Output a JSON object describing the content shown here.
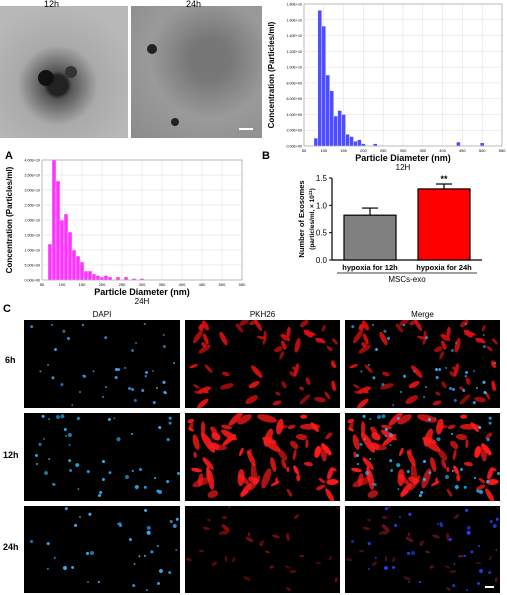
{
  "tem": {
    "left_label": "12h",
    "right_label": "24h"
  },
  "panel_letters": {
    "a": "A",
    "b": "B",
    "c": "C"
  },
  "chart_data": [
    {
      "type": "bar",
      "name": "histogram-12h",
      "title": "12H",
      "xlabel": "Particle Diameter (nm)",
      "ylabel": "Concentration (Particles/ml)",
      "color": "#4d4dff",
      "x_ticks": [
        "50",
        "100",
        "150",
        "200",
        "250",
        "300",
        "350",
        "400",
        "450",
        "500",
        "550"
      ],
      "y_ticks": [
        "0.00E+00",
        "2.00E+09",
        "4.00E+09",
        "6.00E+09",
        "8.00E+09",
        "1.00E+10",
        "1.20E+10",
        "1.40E+10",
        "1.60E+10",
        "1.80E+10"
      ],
      "xlim": [
        50,
        550
      ],
      "ylim": [
        0,
        18000000000.0
      ],
      "bin_width": 10,
      "bins": [
        {
          "x": 80,
          "y": 1000000000.0
        },
        {
          "x": 90,
          "y": 17200000000.0
        },
        {
          "x": 100,
          "y": 15200000000.0
        },
        {
          "x": 110,
          "y": 9000000000.0
        },
        {
          "x": 120,
          "y": 7000000000.0
        },
        {
          "x": 130,
          "y": 3800000000.0
        },
        {
          "x": 140,
          "y": 4500000000.0
        },
        {
          "x": 150,
          "y": 4000000000.0
        },
        {
          "x": 160,
          "y": 1500000000.0
        },
        {
          "x": 170,
          "y": 1200000000.0
        },
        {
          "x": 180,
          "y": 600000000.0
        },
        {
          "x": 190,
          "y": 800000000.0
        },
        {
          "x": 200,
          "y": 300000000.0
        },
        {
          "x": 230,
          "y": 300000000.0
        },
        {
          "x": 440,
          "y": 500000000.0
        },
        {
          "x": 500,
          "y": 400000000.0
        }
      ]
    },
    {
      "type": "bar",
      "name": "histogram-24h",
      "title": "24H",
      "xlabel": "Particle Diameter (nm)",
      "ylabel": "Concentration (Particles/ml)",
      "color": "#ff33ff",
      "x_ticks": [
        "50",
        "100",
        "150",
        "200",
        "250",
        "300",
        "350",
        "400",
        "450",
        "500",
        "550"
      ],
      "y_ticks": [
        "0.00E+00",
        "5.00E+09",
        "1.00E+10",
        "1.50E+10",
        "2.00E+10",
        "2.50E+10",
        "3.00E+10",
        "3.50E+10",
        "4.00E+10"
      ],
      "xlim": [
        50,
        550
      ],
      "ylim": [
        0,
        40000000000.0
      ],
      "bin_width": 10,
      "bins": [
        {
          "x": 70,
          "y": 12000000000.0
        },
        {
          "x": 80,
          "y": 40000000000.0
        },
        {
          "x": 90,
          "y": 33000000000.0
        },
        {
          "x": 100,
          "y": 20000000000.0
        },
        {
          "x": 110,
          "y": 22000000000.0
        },
        {
          "x": 120,
          "y": 16000000000.0
        },
        {
          "x": 130,
          "y": 10000000000.0
        },
        {
          "x": 140,
          "y": 8000000000.0
        },
        {
          "x": 150,
          "y": 6000000000.0
        },
        {
          "x": 160,
          "y": 3000000000.0
        },
        {
          "x": 170,
          "y": 3000000000.0
        },
        {
          "x": 180,
          "y": 2000000000.0
        },
        {
          "x": 190,
          "y": 1500000000.0
        },
        {
          "x": 200,
          "y": 1000000000.0
        },
        {
          "x": 210,
          "y": 1500000000.0
        },
        {
          "x": 220,
          "y": 1000000000.0
        },
        {
          "x": 240,
          "y": 1000000000.0
        },
        {
          "x": 260,
          "y": 1000000000.0
        },
        {
          "x": 280,
          "y": 500000000.0
        },
        {
          "x": 300,
          "y": 500000000.0
        }
      ]
    },
    {
      "type": "bar",
      "name": "exosome-count",
      "ylabel_line1": "Number of Exosomes",
      "ylabel_line2": "(particles/ml, × 10",
      "ylabel_sup": "11",
      "ylabel_end": ")",
      "categories": [
        "hypoxia for 12h",
        "hypoxia for 24h"
      ],
      "values": [
        0.82,
        1.3
      ],
      "errors": [
        0.13,
        0.09
      ],
      "colors": [
        "#808080",
        "#ff0000"
      ],
      "y_ticks": [
        "0.0",
        "0.5",
        "1.0",
        "1.5"
      ],
      "ylim": [
        0,
        1.5
      ],
      "significance": "**",
      "group_label": "MSCs-exo"
    }
  ],
  "fluorescence": {
    "columns": [
      "DAPI",
      "PKH26",
      "Merge"
    ],
    "rows": [
      "6h",
      "12h",
      "24h"
    ]
  }
}
